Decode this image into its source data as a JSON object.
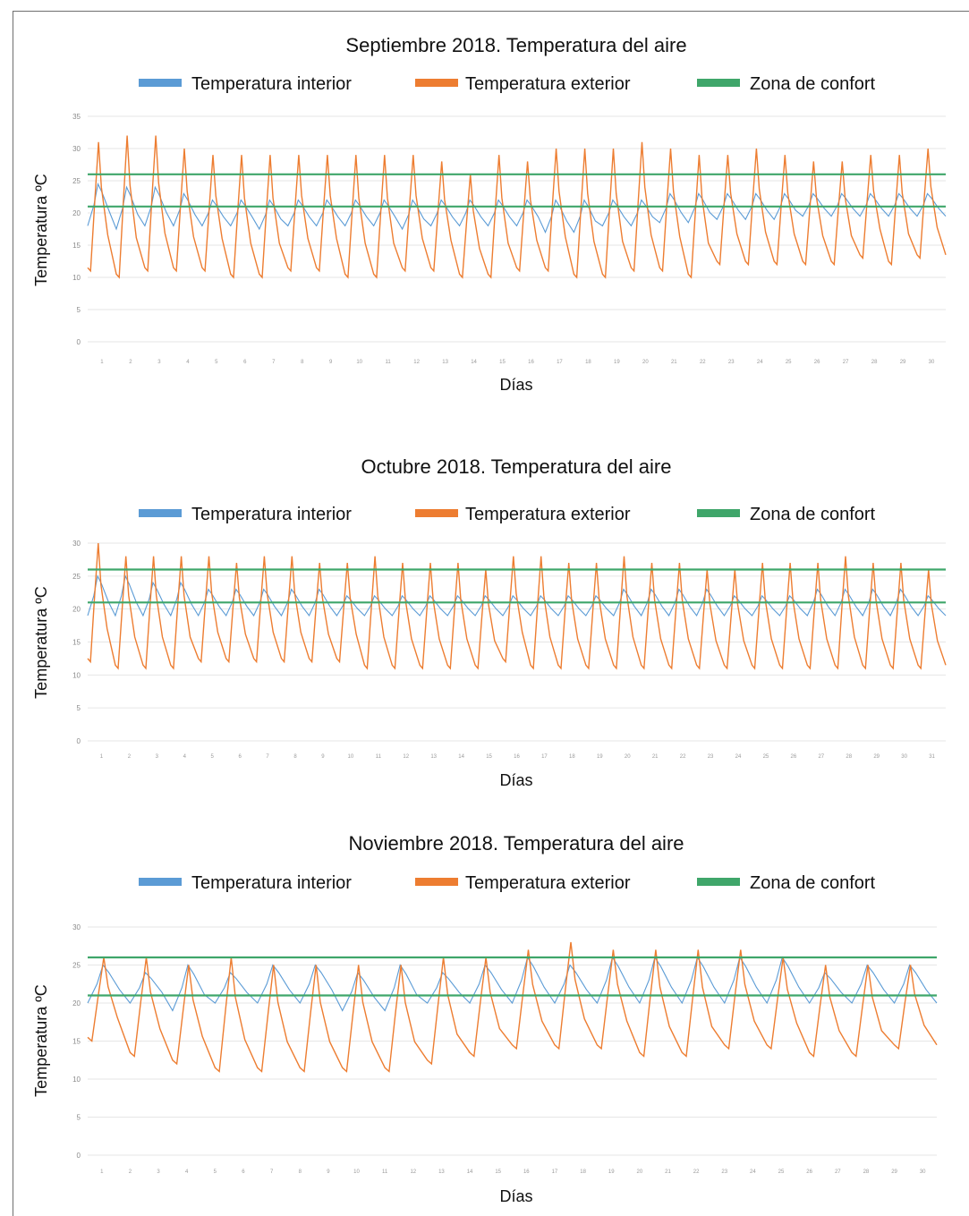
{
  "legend": {
    "interior": {
      "label": "Temperatura interior",
      "color": "#5b9bd5"
    },
    "exterior": {
      "label": "Temperatura exterior",
      "color": "#ed7d31"
    },
    "comfort": {
      "label": "Zona de confort",
      "color": "#3fa66a"
    }
  },
  "chart_data": [
    {
      "type": "line",
      "title": "Septiembre 2018. Temperatura del aire",
      "xlabel": "Días",
      "ylabel": "Temperatura ºC",
      "ylim": [
        0,
        35
      ],
      "yticks": [
        0,
        5,
        10,
        15,
        20,
        25,
        30,
        35
      ],
      "grid": true,
      "legend_position": "top",
      "comfort_zone": [
        21,
        26
      ],
      "x": [
        1,
        2,
        3,
        4,
        5,
        6,
        7,
        8,
        9,
        10,
        11,
        12,
        13,
        14,
        15,
        16,
        17,
        18,
        19,
        20,
        21,
        22,
        23,
        24,
        25,
        26,
        27,
        28,
        29,
        30
      ],
      "series": [
        {
          "name": "Temperatura interior",
          "color": "#5b9bd5",
          "min": [
            18,
            17.5,
            18,
            18,
            18,
            18,
            17.5,
            18,
            18,
            18,
            18,
            17.5,
            18,
            18,
            18,
            18,
            17,
            17,
            18,
            18,
            18.5,
            18.5,
            19,
            19,
            19,
            19.5,
            19.5,
            19.5,
            19.5,
            19.5
          ],
          "max": [
            24.5,
            24,
            24,
            23,
            22,
            22,
            22,
            22,
            22,
            22,
            22,
            22,
            22,
            22,
            22,
            22,
            22,
            22,
            22,
            22,
            23,
            23,
            23,
            23,
            23,
            23,
            23,
            23,
            23,
            23
          ]
        },
        {
          "name": "Temperatura exterior",
          "color": "#ed7d31",
          "min": [
            11,
            10,
            11,
            11,
            11,
            10,
            10,
            11,
            11,
            10,
            10,
            11,
            11,
            10,
            10,
            11,
            11,
            10,
            10,
            11,
            11,
            10,
            12,
            12,
            12,
            12,
            12,
            13,
            12,
            13
          ],
          "max": [
            31,
            32,
            32,
            30,
            29,
            29,
            29,
            29,
            29,
            29,
            29,
            29,
            28,
            26,
            29,
            28,
            30,
            30,
            30,
            31,
            30,
            29,
            29,
            30,
            29,
            28,
            28,
            29,
            29,
            30
          ]
        },
        {
          "name": "Zona de confort",
          "color": "#3fa66a",
          "lower": 21,
          "upper": 26
        }
      ]
    },
    {
      "type": "line",
      "title": "Octubre 2018. Temperatura del aire",
      "xlabel": "Días",
      "ylabel": "Temperatura ºC",
      "ylim": [
        0,
        30
      ],
      "yticks": [
        0,
        5,
        10,
        15,
        20,
        25,
        30
      ],
      "grid": true,
      "legend_position": "top",
      "comfort_zone": [
        21,
        26
      ],
      "x": [
        1,
        2,
        3,
        4,
        5,
        6,
        7,
        8,
        9,
        10,
        11,
        12,
        13,
        14,
        15,
        16,
        17,
        18,
        19,
        20,
        21,
        22,
        23,
        24,
        25,
        26,
        27,
        28,
        29,
        30,
        31
      ],
      "series": [
        {
          "name": "Temperatura interior",
          "color": "#5b9bd5",
          "min": [
            19,
            19,
            19,
            19,
            19,
            19,
            19,
            19,
            19,
            19,
            19,
            19,
            19,
            19,
            19,
            19,
            19,
            19,
            19,
            19,
            19,
            19,
            19,
            19,
            19,
            19,
            19,
            19,
            19,
            19,
            19
          ],
          "max": [
            25,
            25,
            24,
            24,
            23,
            23,
            23,
            23,
            23,
            22,
            22,
            22,
            22,
            22,
            22,
            22,
            22,
            22,
            22,
            23,
            23,
            23,
            23,
            22,
            22,
            22,
            23,
            23,
            23,
            23,
            22
          ]
        },
        {
          "name": "Temperatura exterior",
          "color": "#ed7d31",
          "min": [
            12,
            11,
            11,
            11,
            12,
            12,
            12,
            12,
            12,
            12,
            11,
            11,
            11,
            11,
            11,
            12,
            11,
            11,
            11,
            11,
            11,
            11,
            11,
            11,
            11,
            11,
            11,
            11,
            11,
            11,
            11
          ],
          "max": [
            30,
            28,
            28,
            28,
            28,
            27,
            28,
            28,
            27,
            27,
            28,
            27,
            27,
            27,
            26,
            28,
            28,
            27,
            27,
            28,
            27,
            27,
            26,
            26,
            27,
            27,
            27,
            28,
            27,
            27,
            26
          ]
        },
        {
          "name": "Zona de confort",
          "color": "#3fa66a",
          "lower": 21,
          "upper": 26
        }
      ]
    },
    {
      "type": "line",
      "title": "Noviembre 2018. Temperatura del aire",
      "xlabel": "Días",
      "ylabel": "Temperatura ºC",
      "ylim": [
        0,
        30
      ],
      "yticks": [
        0,
        5,
        10,
        15,
        20,
        25,
        30
      ],
      "grid": true,
      "legend_position": "top",
      "comfort_zone": [
        21,
        26
      ],
      "x": [
        1,
        2,
        3,
        4,
        5,
        6,
        7,
        8,
        9,
        10,
        11,
        12,
        13,
        14,
        15,
        16,
        17,
        18,
        19,
        20,
        21,
        22,
        23,
        24,
        25,
        26,
        27,
        28,
        29,
        30
      ],
      "series": [
        {
          "name": "Temperatura interior",
          "color": "#5b9bd5",
          "min": [
            20,
            20,
            19,
            20,
            20,
            20,
            19,
            19,
            20,
            20,
            20,
            20,
            20,
            20,
            20,
            20,
            20,
            20,
            20,
            20
          ],
          "max": [
            25,
            24,
            25,
            24,
            25,
            25,
            24,
            25,
            24,
            25,
            26,
            25,
            26,
            26,
            26,
            26,
            26,
            24,
            25,
            25
          ]
        },
        {
          "name": "Temperatura exterior",
          "color": "#ed7d31",
          "min": [
            15,
            13,
            12,
            11,
            11,
            11,
            11,
            11,
            12,
            13,
            14,
            14,
            14,
            13,
            13,
            14,
            14,
            13,
            13,
            14
          ],
          "max": [
            26,
            26,
            25,
            26,
            25,
            25,
            25,
            25,
            26,
            26,
            27,
            28,
            27,
            27,
            27,
            27,
            26,
            25,
            25,
            25
          ]
        },
        {
          "name": "Zona de confort",
          "color": "#3fa66a",
          "lower": 21,
          "upper": 26
        }
      ]
    }
  ]
}
